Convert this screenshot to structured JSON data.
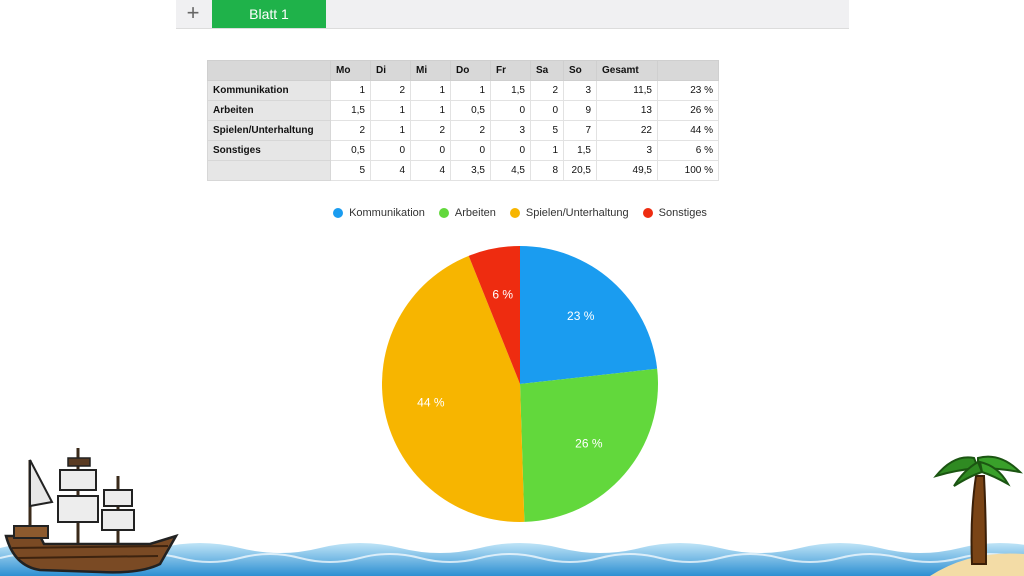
{
  "tabs": {
    "add_label": "+",
    "active_sheet": "Blatt 1"
  },
  "table": {
    "headers": [
      "",
      "Mo",
      "Di",
      "Mi",
      "Do",
      "Fr",
      "Sa",
      "So",
      "Gesamt",
      ""
    ],
    "rows": [
      {
        "label": "Kommunikation",
        "cells": [
          "1",
          "2",
          "1",
          "1",
          "1,5",
          "2",
          "3",
          "11,5",
          "23 %"
        ]
      },
      {
        "label": "Arbeiten",
        "cells": [
          "1,5",
          "1",
          "1",
          "0,5",
          "0",
          "0",
          "9",
          "13",
          "26 %"
        ]
      },
      {
        "label": "Spielen/Unterhaltung",
        "cells": [
          "2",
          "1",
          "2",
          "2",
          "3",
          "5",
          "7",
          "22",
          "44 %"
        ]
      },
      {
        "label": "Sonstiges",
        "cells": [
          "0,5",
          "0",
          "0",
          "0",
          "0",
          "1",
          "1,5",
          "3",
          "6 %"
        ]
      },
      {
        "label": "",
        "cells": [
          "5",
          "4",
          "4",
          "3,5",
          "4,5",
          "8",
          "20,5",
          "49,5",
          "100 %"
        ]
      }
    ]
  },
  "chart_data": {
    "type": "pie",
    "categories": [
      "Kommunikation",
      "Arbeiten",
      "Spielen/Unterhaltung",
      "Sonstiges"
    ],
    "values": [
      23,
      26,
      44,
      6
    ],
    "labels": [
      "23 %",
      "26 %",
      "44 %",
      "6 %"
    ],
    "colors": [
      "#1a9cf0",
      "#62d83c",
      "#f7b500",
      "#ee2c10"
    ],
    "legend_position": "top"
  },
  "icons": [
    "plus-icon",
    "ship-icon",
    "palm-tree-icon",
    "sea-waves-icon"
  ]
}
